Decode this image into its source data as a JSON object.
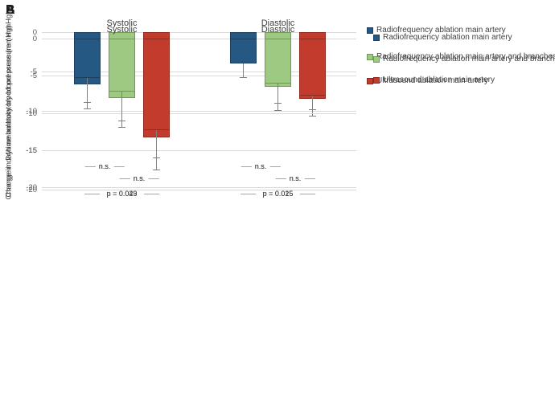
{
  "chart_data": [
    {
      "type": "bar",
      "panel_label": "A",
      "ylabel": "Change in daytime ambulatory blood pressure ( mmHg)",
      "ylim": [
        -20,
        0
      ],
      "yticks": [
        0,
        -5,
        -10,
        -15,
        -20
      ],
      "categories": [
        "Systolic",
        "Diastolic"
      ],
      "series": [
        {
          "name": "Radiofrequency ablation main artery",
          "color": "#265884",
          "border_color": "#1c3f60",
          "values": [
            -6.6,
            -3.8
          ],
          "errors": [
            3.1,
            1.9
          ]
        },
        {
          "name": "Radiofrequency ablation main artery and branches",
          "color": "#9ec983",
          "border_color": "#6f9c53",
          "values": [
            -8.4,
            -6.9
          ],
          "errors": [
            3.7,
            3.0
          ]
        },
        {
          "name": "Ultrasound ablation main artery",
          "color": "#c23b2c",
          "border_color": "#8f291e",
          "values": [
            -13.4,
            -8.5
          ],
          "errors": [
            4.1,
            2.1
          ]
        }
      ],
      "annotations": [
        {
          "category": "Systolic",
          "comparisons": [
            "n.s.",
            "n.s.",
            "p = 0.043"
          ]
        },
        {
          "category": "Diastolic",
          "comparisons": [
            "n.s.",
            "n.s.",
            "p = 0.025"
          ]
        }
      ],
      "grid": true,
      "legend_position": "right"
    },
    {
      "type": "bar",
      "panel_label": "B",
      "ylabel": "Change in 24h ambulatory blood pressure (mmHg)",
      "ylim": [
        -20,
        0
      ],
      "yticks": [
        0,
        -5,
        -10,
        -15,
        -20
      ],
      "categories": [
        "Systolic",
        "Diastolic"
      ],
      "series": [
        {
          "name": "Radiofrequency ablation main artery",
          "color": "#265884",
          "border_color": "#1c3f60",
          "values": [
            -5.3,
            -3.3
          ],
          "errors": [
            3.2,
            1.8
          ]
        },
        {
          "name": "Radiofrequency ablation main artery and branches",
          "color": "#9ec983",
          "border_color": "#6f9c53",
          "values": [
            -7.1,
            -6.1
          ],
          "errors": [
            3.9,
            2.6
          ]
        },
        {
          "name": "Ultrasound ablation main artery",
          "color": "#c23b2c",
          "border_color": "#8f291e",
          "values": [
            -12.3,
            -7.7
          ],
          "errors": [
            3.7,
            1.8
          ]
        }
      ],
      "annotations": [
        {
          "category": "Systolic",
          "comparisons": [
            "n.s.",
            "n.s.",
            "p = 0.029"
          ]
        },
        {
          "category": "Diastolic",
          "comparisons": [
            "n.s.",
            "n.s.",
            "p = 0.015"
          ]
        }
      ],
      "grid": true,
      "legend_position": "right"
    }
  ],
  "colors": {
    "gridline": "#d9d9d9",
    "error_bar": "#7f7f7f",
    "sig_line": "#a6a6a6",
    "text": "#3d3d3d",
    "tick_text": "#595959",
    "background": "#ffffff"
  }
}
